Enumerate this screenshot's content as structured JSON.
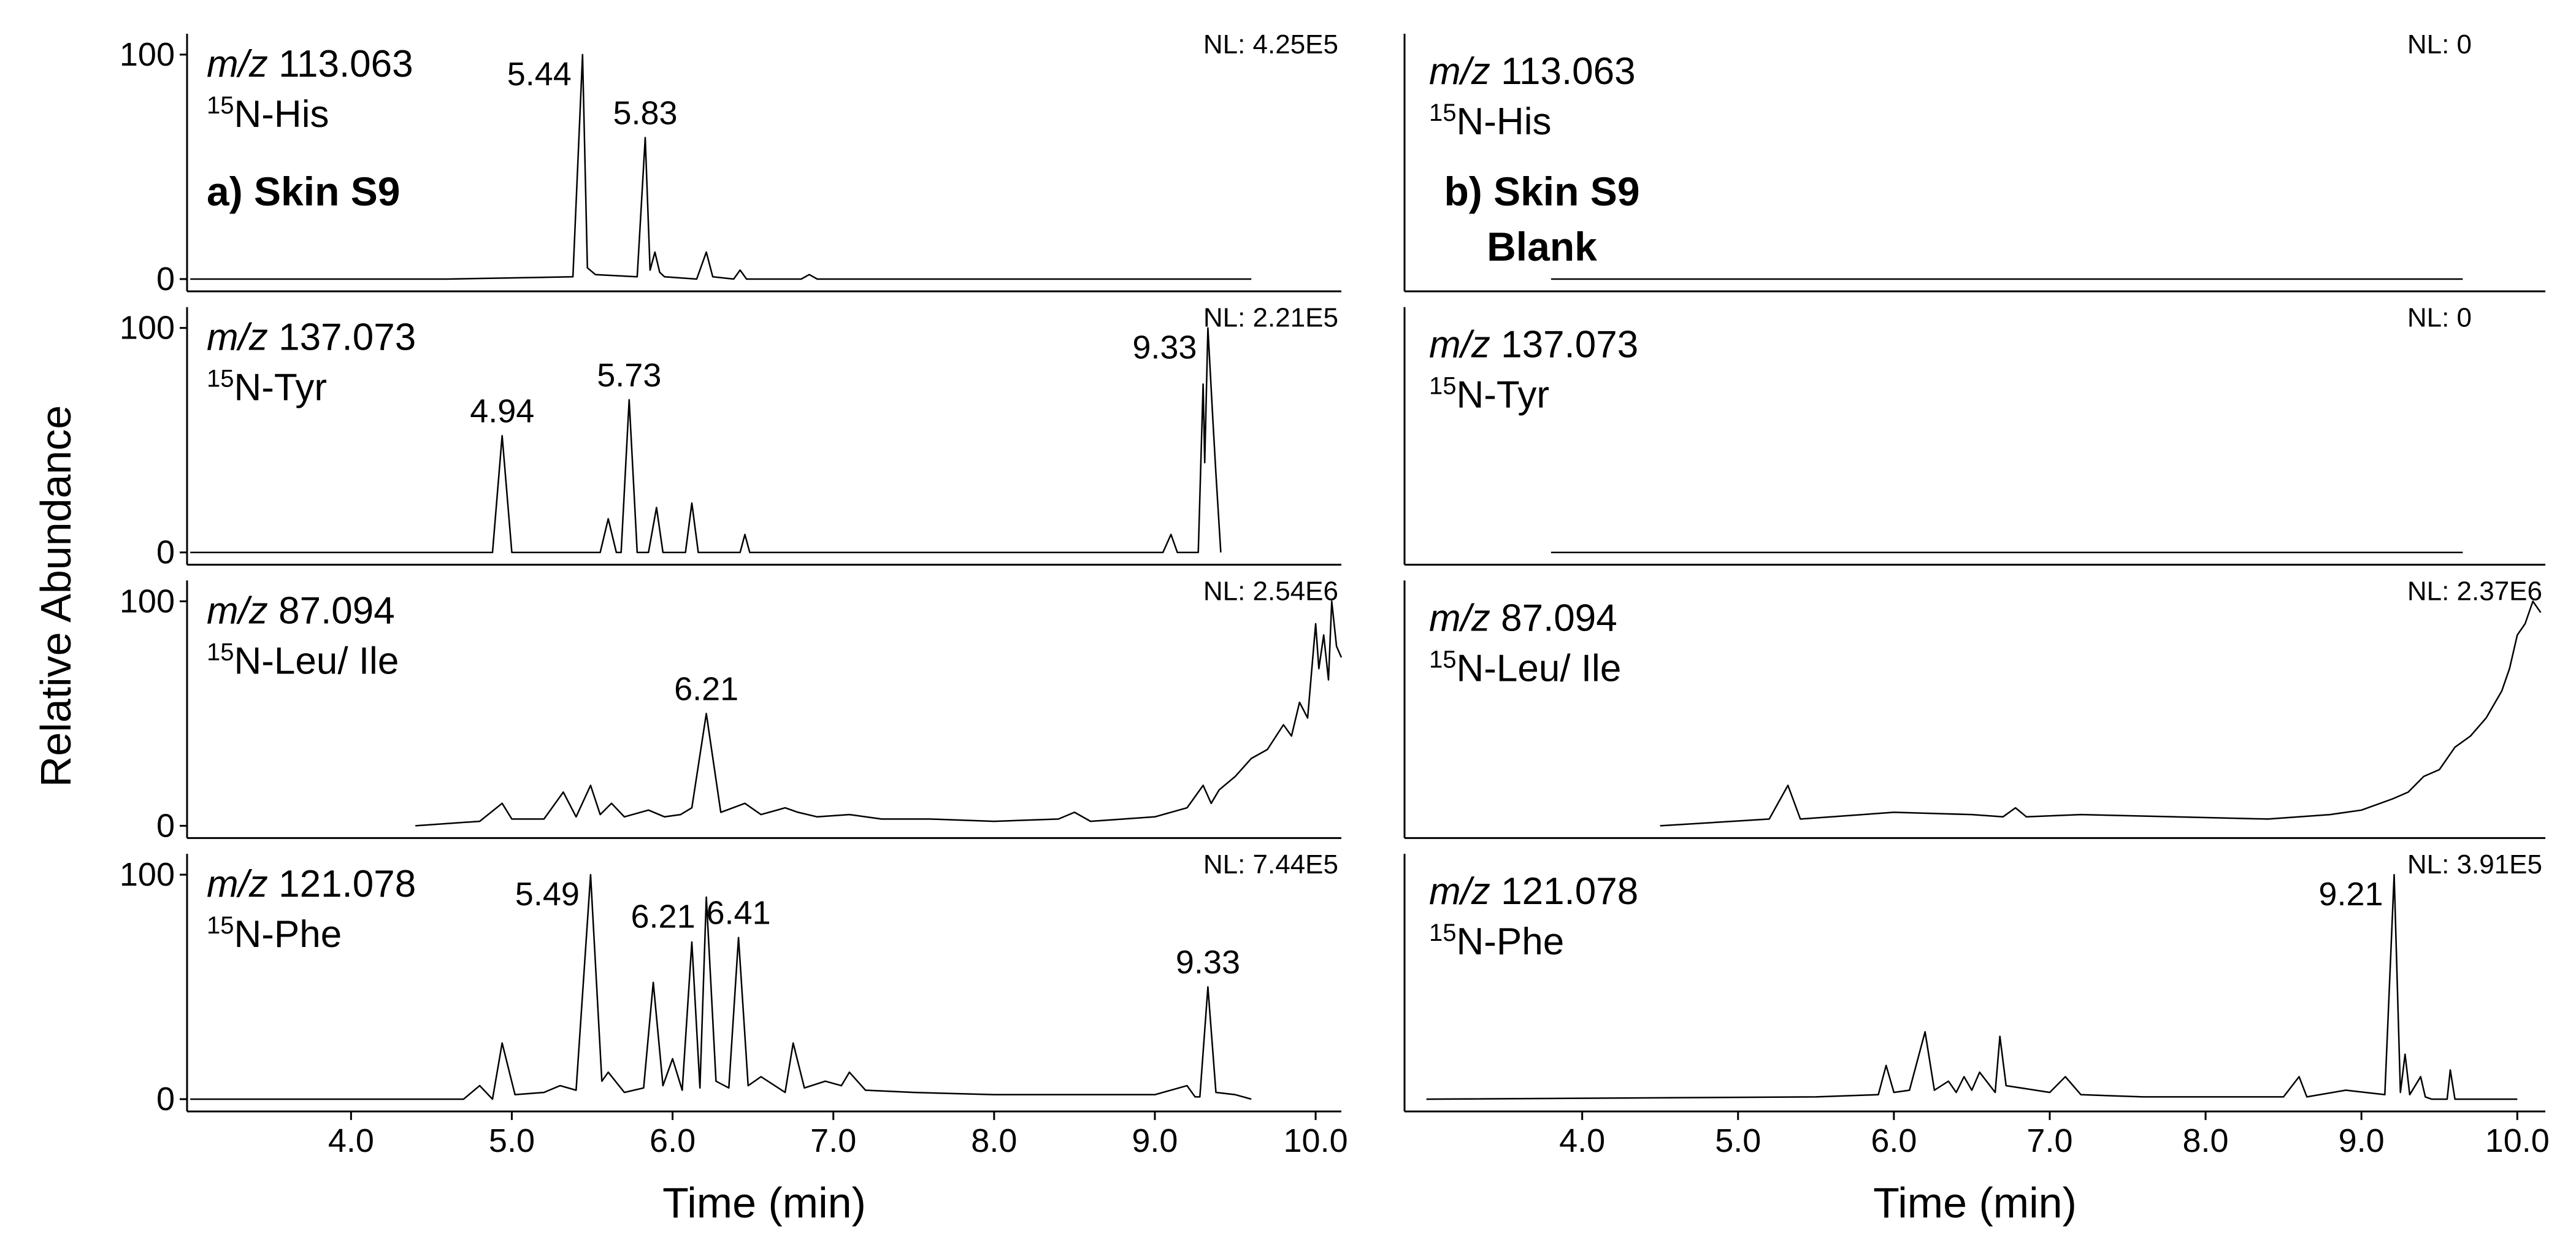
{
  "chart_data": [
    {
      "type": "line",
      "ylabel": "Relative Abundance",
      "mz_prefix": "m/z",
      "mz": "113.063",
      "isotope": "15",
      "compound": "N-His",
      "nl": "NL: 4.25E5",
      "panel_label": [
        "a) Skin S9"
      ],
      "x": [
        3.0,
        4.6,
        5.38,
        5.44,
        5.47,
        5.52,
        5.78,
        5.83,
        5.86,
        5.89,
        5.92,
        5.95,
        6.15,
        6.21,
        6.25,
        6.38,
        6.42,
        6.46,
        6.8,
        6.85,
        6.9,
        7.5,
        9.6
      ],
      "values": [
        0,
        0,
        1,
        100,
        5,
        2,
        1,
        63,
        4,
        12,
        3,
        1,
        0,
        12,
        1,
        0,
        4,
        0,
        0,
        2,
        0,
        0,
        0
      ],
      "annotations": [
        {
          "x": 5.44,
          "y": 100
        },
        {
          "x": 5.83,
          "y": 63
        }
      ],
      "color": "#000000",
      "xlim": [
        2.98,
        10.16
      ],
      "ylim": [
        0,
        100
      ],
      "yticks": [
        0,
        100
      ]
    },
    {
      "type": "line",
      "mz_prefix": "m/z",
      "mz": "137.073",
      "isotope": "15",
      "compound": "N-Tyr",
      "nl": "NL: 2.21E5",
      "x": [
        3.0,
        4.88,
        4.94,
        5.0,
        5.55,
        5.6,
        5.65,
        5.68,
        5.73,
        5.78,
        5.85,
        5.9,
        5.94,
        6.08,
        6.12,
        6.16,
        6.42,
        6.45,
        6.48,
        9.05,
        9.1,
        9.14,
        9.27,
        9.3,
        9.31,
        9.33,
        9.36,
        9.38,
        9.41
      ],
      "values": [
        0,
        0,
        52,
        0,
        0,
        15,
        0,
        0,
        68,
        0,
        0,
        20,
        0,
        0,
        22,
        0,
        0,
        8,
        0,
        0,
        8,
        0,
        0,
        75,
        40,
        100,
        60,
        35,
        0
      ],
      "annotations": [
        {
          "x": 4.94,
          "y": 52
        },
        {
          "x": 5.73,
          "y": 68
        },
        {
          "x": 9.33,
          "y": 100
        }
      ],
      "color": "#000000",
      "xlim": [
        2.98,
        10.16
      ],
      "ylim": [
        0,
        100
      ],
      "yticks": [
        0,
        100
      ]
    },
    {
      "type": "line",
      "mz_prefix": "m/z",
      "mz": "87.094",
      "isotope": "15",
      "compound": "N-Leu/ Ile",
      "nl": "NL: 2.54E6",
      "x": [
        4.4,
        4.8,
        4.94,
        5.0,
        5.2,
        5.32,
        5.4,
        5.49,
        5.55,
        5.62,
        5.7,
        5.85,
        5.95,
        6.05,
        6.12,
        6.21,
        6.3,
        6.45,
        6.55,
        6.7,
        6.78,
        6.9,
        7.1,
        7.3,
        7.6,
        8.0,
        8.4,
        8.5,
        8.6,
        9.0,
        9.2,
        9.3,
        9.35,
        9.4,
        9.5,
        9.6,
        9.7,
        9.8,
        9.85,
        9.9,
        9.95,
        10.0,
        10.02,
        10.05,
        10.08,
        10.1,
        10.13,
        10.16
      ],
      "values": [
        0,
        2,
        10,
        3,
        3,
        15,
        4,
        18,
        5,
        10,
        4,
        7,
        4,
        5,
        8,
        50,
        6,
        10,
        5,
        8,
        6,
        4,
        5,
        3,
        3,
        2,
        3,
        6,
        2,
        4,
        8,
        18,
        10,
        16,
        22,
        30,
        34,
        45,
        40,
        55,
        48,
        90,
        70,
        85,
        65,
        100,
        80,
        75
      ],
      "annotations": [
        {
          "x": 6.21,
          "y": 50
        }
      ],
      "color": "#000000",
      "xlim": [
        2.98,
        10.16
      ],
      "ylim": [
        0,
        100
      ],
      "yticks": [
        0,
        100
      ]
    },
    {
      "type": "line",
      "mz_prefix": "m/z",
      "mz": "121.078",
      "isotope": "15",
      "compound": "N-Phe",
      "nl": "NL: 7.44E5",
      "xlabel": "Time (min)",
      "x": [
        3.0,
        4.7,
        4.8,
        4.88,
        4.94,
        5.02,
        5.2,
        5.3,
        5.4,
        5.49,
        5.56,
        5.6,
        5.7,
        5.82,
        5.88,
        5.94,
        6.0,
        6.06,
        6.12,
        6.17,
        6.21,
        6.27,
        6.35,
        6.41,
        6.47,
        6.55,
        6.7,
        6.75,
        6.82,
        6.95,
        7.05,
        7.1,
        7.2,
        7.5,
        8.0,
        9.0,
        9.2,
        9.25,
        9.28,
        9.33,
        9.38,
        9.5,
        9.6
      ],
      "values": [
        0,
        0,
        6,
        0,
        25,
        2,
        3,
        6,
        4,
        100,
        8,
        12,
        3,
        5,
        52,
        6,
        18,
        4,
        70,
        5,
        90,
        8,
        5,
        72,
        6,
        10,
        3,
        25,
        5,
        8,
        6,
        12,
        4,
        3,
        2,
        2,
        6,
        1,
        1,
        50,
        3,
        2,
        0
      ],
      "annotations": [
        {
          "x": 5.49,
          "y": 100
        },
        {
          "x": 6.21,
          "y": 90
        },
        {
          "x": 6.41,
          "y": 72
        },
        {
          "x": 9.33,
          "y": 50
        }
      ],
      "color": "#000000",
      "xlim": [
        2.98,
        10.16
      ],
      "ylim": [
        0,
        100
      ],
      "yticks": [
        0,
        100
      ],
      "xticks": [
        {
          "value": 4,
          "label": "4.0"
        },
        {
          "value": 5,
          "label": "5.0"
        },
        {
          "value": 6,
          "label": "6.0"
        },
        {
          "value": 7,
          "label": "7.0"
        },
        {
          "value": 8,
          "label": "8.0"
        },
        {
          "value": 9,
          "label": "9.0"
        },
        {
          "value": 10,
          "label": "10.0"
        }
      ]
    },
    {
      "type": "line",
      "mz_prefix": "m/z",
      "mz": "113.063",
      "isotope": "15",
      "compound": "N-His",
      "nl": "NL: 0",
      "panel_label": [
        "b) Skin S9",
        "Blank"
      ],
      "x": [
        3.8,
        9.65
      ],
      "values": [
        0,
        0
      ],
      "color": "#000000",
      "xlim": [
        2.86,
        10.18
      ],
      "ylim": [
        0,
        100
      ]
    },
    {
      "type": "line",
      "mz_prefix": "m/z",
      "mz": "137.073",
      "isotope": "15",
      "compound": "N-Tyr",
      "nl": "NL: 0",
      "x": [
        3.8,
        9.65
      ],
      "values": [
        0,
        0
      ],
      "color": "#000000",
      "xlim": [
        2.86,
        10.18
      ],
      "ylim": [
        0,
        100
      ]
    },
    {
      "type": "line",
      "mz_prefix": "m/z",
      "mz": "87.094",
      "isotope": "15",
      "compound": "N-Leu/ Ile",
      "nl": "NL: 2.37E6",
      "x": [
        4.5,
        5.2,
        5.32,
        5.4,
        5.6,
        6.0,
        6.5,
        6.7,
        6.78,
        6.85,
        7.2,
        7.8,
        8.4,
        8.8,
        9.0,
        9.2,
        9.3,
        9.4,
        9.5,
        9.6,
        9.7,
        9.8,
        9.9,
        9.95,
        10.0,
        10.05,
        10.1,
        10.15
      ],
      "values": [
        0,
        3,
        18,
        3,
        4,
        6,
        5,
        4,
        8,
        4,
        5,
        4,
        3,
        5,
        7,
        12,
        15,
        22,
        25,
        35,
        40,
        48,
        60,
        70,
        85,
        90,
        100,
        95
      ],
      "color": "#000000",
      "xlim": [
        2.86,
        10.18
      ],
      "ylim": [
        0,
        100
      ]
    },
    {
      "type": "line",
      "mz_prefix": "m/z",
      "mz": "121.078",
      "isotope": "15",
      "compound": "N-Phe",
      "nl": "NL: 3.91E5",
      "xlabel": "Time (min)",
      "x": [
        3.0,
        5.5,
        5.9,
        5.95,
        6.0,
        6.1,
        6.2,
        6.26,
        6.35,
        6.4,
        6.45,
        6.5,
        6.55,
        6.65,
        6.68,
        6.72,
        7.0,
        7.1,
        7.2,
        7.6,
        8.5,
        8.6,
        8.65,
        8.9,
        9.15,
        9.21,
        9.25,
        9.28,
        9.31,
        9.38,
        9.41,
        9.45,
        9.55,
        9.57,
        9.6,
        10.0
      ],
      "values": [
        0,
        1,
        2,
        15,
        3,
        4,
        30,
        4,
        8,
        3,
        10,
        4,
        12,
        3,
        28,
        6,
        3,
        10,
        2,
        1,
        1,
        10,
        1,
        4,
        2,
        100,
        3,
        20,
        2,
        10,
        1,
        0,
        0,
        13,
        0,
        0
      ],
      "annotations": [
        {
          "x": 9.21,
          "y": 100
        }
      ],
      "color": "#000000",
      "xlim": [
        2.86,
        10.18
      ],
      "ylim": [
        0,
        100
      ],
      "xticks": [
        {
          "value": 4,
          "label": "4.0"
        },
        {
          "value": 5,
          "label": "5.0"
        },
        {
          "value": 6,
          "label": "6.0"
        },
        {
          "value": 7,
          "label": "7.0"
        },
        {
          "value": 8,
          "label": "8.0"
        },
        {
          "value": 9,
          "label": "9.0"
        },
        {
          "value": 10,
          "label": "10.0"
        }
      ]
    }
  ]
}
